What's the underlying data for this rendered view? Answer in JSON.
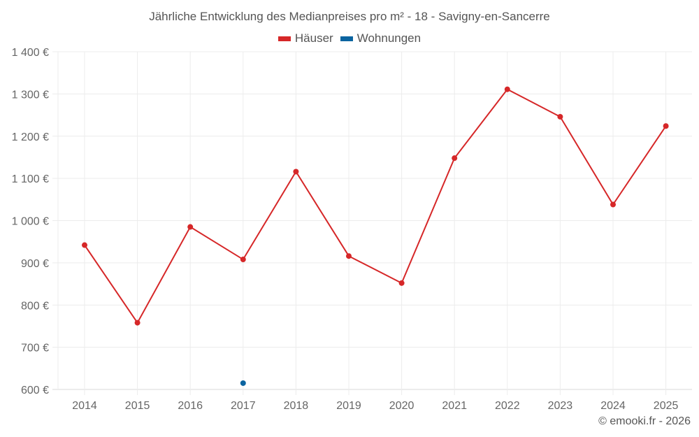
{
  "chart_data": {
    "type": "line",
    "title": "Jährliche Entwicklung des Medianpreises pro m² - 18 - Savigny-en-Sancerre",
    "xlabel": "",
    "ylabel": "",
    "x": [
      2014,
      2015,
      2016,
      2017,
      2018,
      2019,
      2020,
      2021,
      2022,
      2023,
      2024,
      2025
    ],
    "series": [
      {
        "name": "Häuser",
        "color": "#d62728",
        "values": [
          942,
          758,
          985,
          908,
          1116,
          916,
          852,
          1148,
          1311,
          1246,
          1038,
          1224
        ]
      },
      {
        "name": "Wohnungen",
        "color": "#0b64a0",
        "values": [
          null,
          null,
          null,
          615,
          null,
          null,
          null,
          null,
          null,
          null,
          null,
          null
        ]
      }
    ],
    "ylim": [
      600,
      1400
    ],
    "yticks": [
      "600 €",
      "700 €",
      "800 €",
      "900 €",
      "1 000 €",
      "1 100 €",
      "1 200 €",
      "1 300 €",
      "1 400 €"
    ],
    "grid": true,
    "legend_position": "top"
  },
  "title": "Jährliche Entwicklung des Medianpreises pro m² - 18 - Savigny-en-Sancerre",
  "legend": [
    {
      "label": "Häuser",
      "color": "#d62728"
    },
    {
      "label": "Wohnungen",
      "color": "#0b64a0"
    }
  ],
  "credit": "© emooki.fr - 2026"
}
